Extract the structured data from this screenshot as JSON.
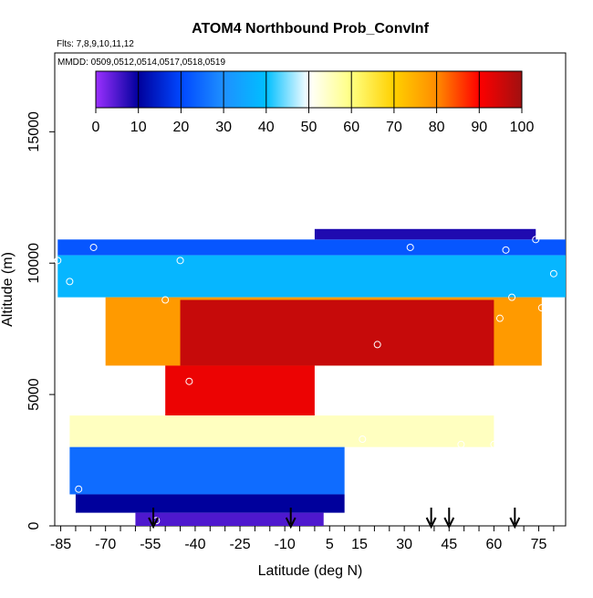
{
  "chart_data": {
    "type": "heatmap",
    "title": "ATOM4 Northbound Prob_ConvInf",
    "annotations": [
      "Flts: 7,8,9,10,11,12",
      "MMDD: 0509,0512,0514,0517,0518,0519"
    ],
    "xlabel": "Latitude (deg N)",
    "ylabel": "Altitude (m)",
    "xlim": [
      -87,
      84
    ],
    "ylim": [
      0,
      18000
    ],
    "xticks": [
      -85,
      -70,
      -55,
      -40,
      -25,
      -10,
      5,
      15,
      30,
      45,
      60,
      75
    ],
    "yticks": [
      0,
      5000,
      10000,
      15000
    ],
    "colorbar": {
      "range": [
        0,
        100
      ],
      "ticks": [
        0,
        10,
        20,
        30,
        40,
        50,
        60,
        70,
        80,
        90,
        100
      ],
      "colors": [
        "#8a2be2",
        "#00008b",
        "#1e90ff",
        "#00bfff",
        "#ffffff",
        "#ffff66",
        "#ffa500",
        "#ff0000",
        "#8b1a1a"
      ]
    },
    "z_description": "Probability of convective influence (percent)",
    "blocks": [
      {
        "lat": [
          -86,
          84
        ],
        "alt": [
          10300,
          10900
        ],
        "value": 22
      },
      {
        "lat": [
          -86,
          84
        ],
        "alt": [
          8700,
          10300
        ],
        "value": 38
      },
      {
        "lat": [
          -70,
          76
        ],
        "alt": [
          6100,
          8700
        ],
        "value": 78
      },
      {
        "lat": [
          -45,
          60
        ],
        "alt": [
          6100,
          8600
        ],
        "value": 96
      },
      {
        "lat": [
          -50,
          0
        ],
        "alt": [
          4200,
          6100
        ],
        "value": 92
      },
      {
        "lat": [
          -82,
          60
        ],
        "alt": [
          3000,
          4200
        ],
        "value": 55
      },
      {
        "lat": [
          -82,
          10
        ],
        "alt": [
          1200,
          3000
        ],
        "value": 25
      },
      {
        "lat": [
          -80,
          10
        ],
        "alt": [
          500,
          1200
        ],
        "value": 10
      },
      {
        "lat": [
          -60,
          3
        ],
        "alt": [
          0,
          500
        ],
        "value": 5
      },
      {
        "lat": [
          0,
          74
        ],
        "alt": [
          10900,
          11300
        ],
        "value": 8
      }
    ],
    "sample_points": [
      {
        "lat": -86,
        "alt": 10100
      },
      {
        "lat": -82,
        "alt": 9300
      },
      {
        "lat": -78,
        "alt": 7000
      },
      {
        "lat": -74,
        "alt": 10600
      },
      {
        "lat": -50,
        "alt": 8600
      },
      {
        "lat": -45,
        "alt": 10100
      },
      {
        "lat": -42,
        "alt": 5500
      },
      {
        "lat": -79,
        "alt": 1400
      },
      {
        "lat": -53,
        "alt": 200
      },
      {
        "lat": 5,
        "alt": 200
      },
      {
        "lat": 16,
        "alt": 3300
      },
      {
        "lat": 21,
        "alt": 6900
      },
      {
        "lat": 32,
        "alt": 10600
      },
      {
        "lat": 49,
        "alt": 3100
      },
      {
        "lat": 62,
        "alt": 7900
      },
      {
        "lat": 64,
        "alt": 10500
      },
      {
        "lat": 66,
        "alt": 8700
      },
      {
        "lat": 74,
        "alt": 10900
      },
      {
        "lat": 76,
        "alt": 8300
      },
      {
        "lat": 80,
        "alt": 9600
      },
      {
        "lat": 60,
        "alt": 3100
      }
    ],
    "arrows": [
      -54,
      -8,
      39,
      45,
      67
    ]
  }
}
